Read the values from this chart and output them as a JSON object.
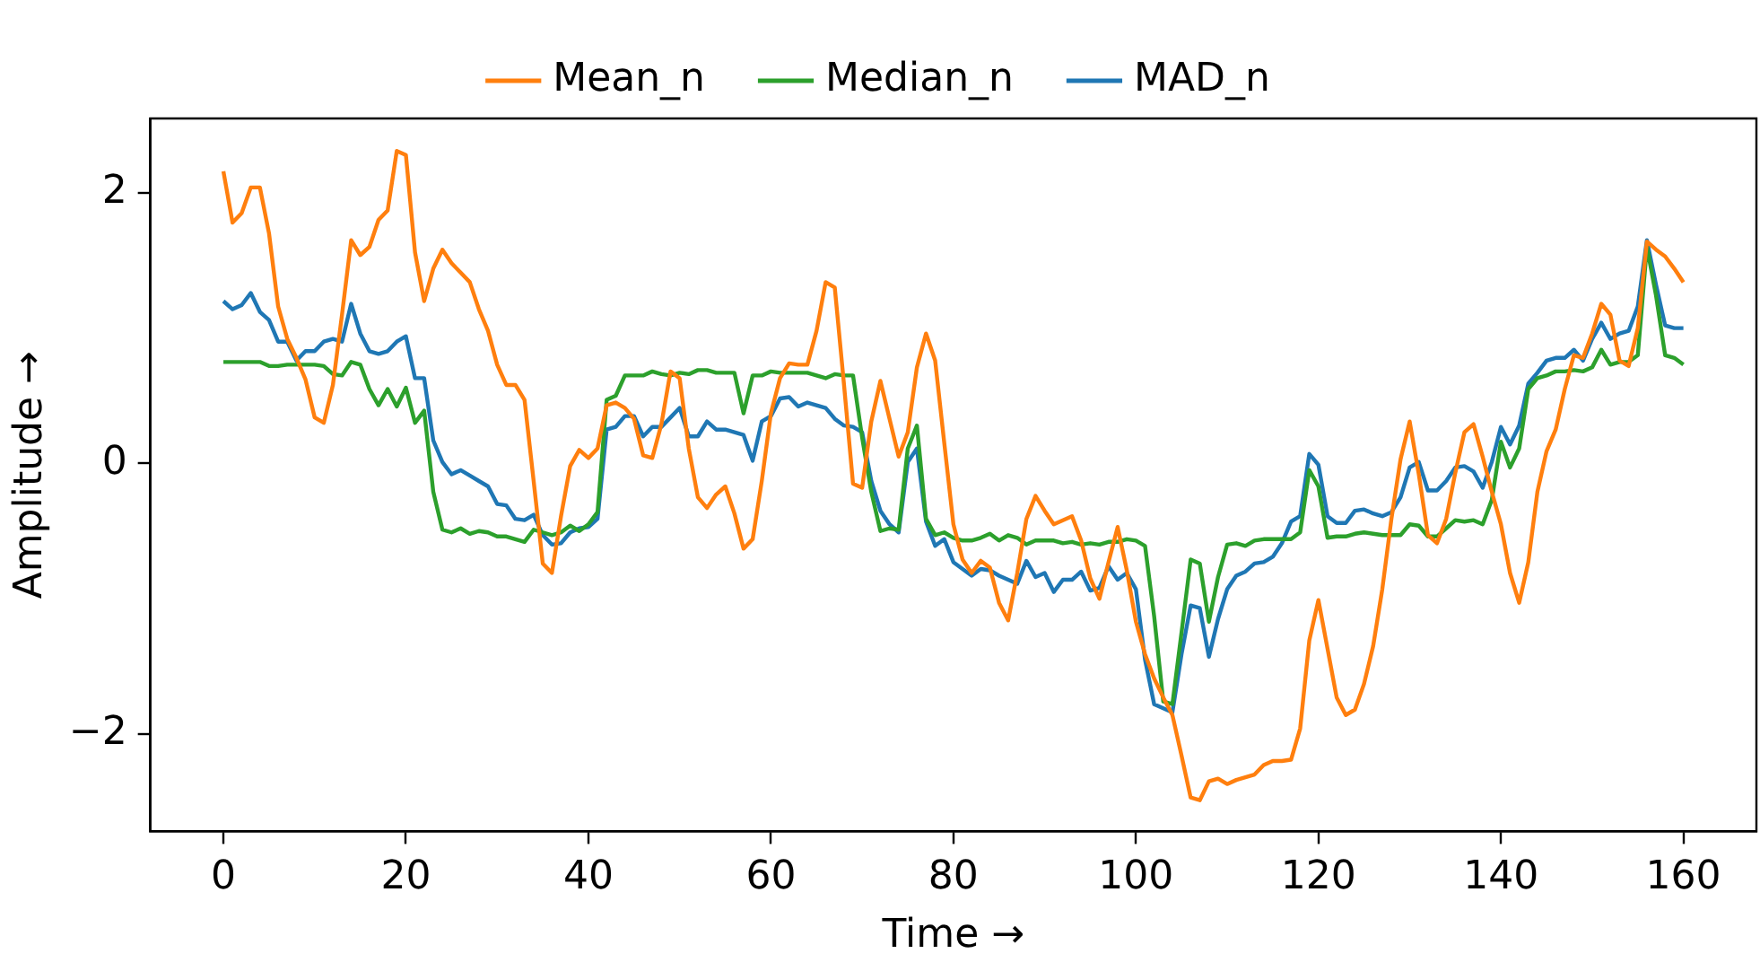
{
  "chart_data": {
    "type": "line",
    "xlabel": "Time →",
    "ylabel": "Amplitude →",
    "legend": "top",
    "grid": false,
    "marker": "none",
    "line_style": "solid",
    "xlim": [
      -8,
      168
    ],
    "xticks": [
      0,
      20,
      40,
      60,
      80,
      100,
      120,
      140,
      160
    ],
    "ylim": [
      -2.72,
      2.55
    ],
    "yticks": [
      {
        "value": -2,
        "label": "−2"
      },
      0,
      2
    ],
    "x": [
      0,
      1,
      2,
      3,
      4,
      5,
      6,
      7,
      8,
      9,
      10,
      11,
      12,
      13,
      14,
      15,
      16,
      17,
      18,
      19,
      20,
      21,
      22,
      23,
      24,
      25,
      26,
      27,
      28,
      29,
      30,
      31,
      32,
      33,
      34,
      35,
      36,
      37,
      38,
      39,
      40,
      41,
      42,
      43,
      44,
      45,
      46,
      47,
      48,
      49,
      50,
      51,
      52,
      53,
      54,
      55,
      56,
      57,
      58,
      59,
      60,
      61,
      62,
      63,
      64,
      65,
      66,
      67,
      68,
      69,
      70,
      71,
      72,
      73,
      74,
      75,
      76,
      77,
      78,
      79,
      80,
      81,
      82,
      83,
      84,
      85,
      86,
      87,
      88,
      89,
      90,
      91,
      92,
      93,
      94,
      95,
      96,
      97,
      98,
      99,
      100,
      101,
      102,
      103,
      104,
      105,
      106,
      107,
      108,
      109,
      110,
      111,
      112,
      113,
      114,
      115,
      116,
      117,
      118,
      119,
      120,
      121,
      122,
      123,
      124,
      125,
      126,
      127,
      128,
      129,
      130,
      131,
      132,
      133,
      134,
      135,
      136,
      137,
      138,
      139,
      140,
      141,
      142,
      143,
      144,
      145,
      146,
      147,
      148,
      149,
      150,
      151,
      152,
      153,
      154,
      155,
      156,
      157,
      158,
      159,
      160
    ],
    "series": [
      {
        "name": "Mean_n",
        "color": "#ff7f0e",
        "values": [
          2.16,
          1.78,
          1.85,
          2.04,
          2.04,
          1.7,
          1.16,
          0.92,
          0.78,
          0.62,
          0.34,
          0.3,
          0.58,
          1.1,
          1.65,
          1.54,
          1.6,
          1.8,
          1.87,
          2.31,
          2.28,
          1.56,
          1.2,
          1.44,
          1.58,
          1.48,
          1.41,
          1.34,
          1.14,
          0.98,
          0.73,
          0.58,
          0.58,
          0.47,
          -0.13,
          -0.74,
          -0.81,
          -0.39,
          -0.02,
          0.1,
          0.04,
          0.11,
          0.43,
          0.45,
          0.41,
          0.33,
          0.06,
          0.04,
          0.29,
          0.68,
          0.63,
          0.11,
          -0.25,
          -0.33,
          -0.23,
          -0.17,
          -0.37,
          -0.63,
          -0.56,
          -0.13,
          0.37,
          0.63,
          0.74,
          0.73,
          0.73,
          0.98,
          1.34,
          1.3,
          0.59,
          -0.15,
          -0.18,
          0.31,
          0.61,
          0.33,
          0.05,
          0.23,
          0.71,
          0.96,
          0.76,
          0.15,
          -0.45,
          -0.71,
          -0.81,
          -0.72,
          -0.77,
          -1.03,
          -1.16,
          -0.81,
          -0.41,
          -0.24,
          -0.35,
          -0.45,
          -0.42,
          -0.39,
          -0.57,
          -0.85,
          -1.0,
          -0.73,
          -0.47,
          -0.79,
          -1.17,
          -1.41,
          -1.59,
          -1.73,
          -1.86,
          -2.16,
          -2.47,
          -2.49,
          -2.35,
          -2.33,
          -2.37,
          -2.34,
          -2.32,
          -2.3,
          -2.23,
          -2.2,
          -2.2,
          -2.19,
          -1.96,
          -1.31,
          -1.01,
          -1.37,
          -1.73,
          -1.86,
          -1.82,
          -1.63,
          -1.35,
          -0.93,
          -0.41,
          0.03,
          0.31,
          -0.08,
          -0.53,
          -0.59,
          -0.41,
          -0.07,
          0.23,
          0.29,
          0.05,
          -0.21,
          -0.45,
          -0.81,
          -1.03,
          -0.73,
          -0.21,
          0.09,
          0.25,
          0.55,
          0.8,
          0.78,
          0.96,
          1.18,
          1.1,
          0.76,
          0.72,
          1.0,
          1.64,
          1.58,
          1.53,
          1.44,
          1.34
        ]
      },
      {
        "name": "Median_n",
        "color": "#2ca02c",
        "values": [
          0.75,
          0.75,
          0.75,
          0.75,
          0.75,
          0.72,
          0.72,
          0.73,
          0.73,
          0.73,
          0.73,
          0.72,
          0.66,
          0.65,
          0.75,
          0.73,
          0.55,
          0.43,
          0.55,
          0.42,
          0.56,
          0.3,
          0.39,
          -0.21,
          -0.49,
          -0.51,
          -0.48,
          -0.52,
          -0.5,
          -0.51,
          -0.54,
          -0.54,
          -0.56,
          -0.58,
          -0.49,
          -0.51,
          -0.53,
          -0.51,
          -0.46,
          -0.5,
          -0.45,
          -0.36,
          0.47,
          0.5,
          0.65,
          0.65,
          0.65,
          0.68,
          0.66,
          0.65,
          0.67,
          0.66,
          0.69,
          0.69,
          0.67,
          0.67,
          0.67,
          0.37,
          0.65,
          0.65,
          0.68,
          0.67,
          0.67,
          0.67,
          0.67,
          0.65,
          0.63,
          0.66,
          0.65,
          0.65,
          0.19,
          -0.21,
          -0.5,
          -0.48,
          -0.49,
          0.11,
          0.28,
          -0.41,
          -0.53,
          -0.51,
          -0.55,
          -0.57,
          -0.57,
          -0.55,
          -0.52,
          -0.57,
          -0.53,
          -0.55,
          -0.6,
          -0.57,
          -0.57,
          -0.57,
          -0.59,
          -0.58,
          -0.6,
          -0.59,
          -0.6,
          -0.58,
          -0.58,
          -0.56,
          -0.57,
          -0.61,
          -1.13,
          -1.76,
          -1.78,
          -1.25,
          -0.71,
          -0.74,
          -1.17,
          -0.84,
          -0.6,
          -0.59,
          -0.61,
          -0.57,
          -0.56,
          -0.56,
          -0.56,
          -0.56,
          -0.51,
          -0.05,
          -0.17,
          -0.55,
          -0.54,
          -0.54,
          -0.52,
          -0.51,
          -0.52,
          -0.53,
          -0.53,
          -0.53,
          -0.45,
          -0.46,
          -0.54,
          -0.54,
          -0.48,
          -0.42,
          -0.43,
          -0.42,
          -0.45,
          -0.27,
          0.16,
          -0.03,
          0.11,
          0.55,
          0.63,
          0.65,
          0.68,
          0.68,
          0.69,
          0.68,
          0.71,
          0.84,
          0.73,
          0.75,
          0.75,
          0.8,
          1.6,
          1.24,
          0.8,
          0.78,
          0.73
        ]
      },
      {
        "name": "MAD_n",
        "color": "#1f77b4",
        "values": [
          1.2,
          1.14,
          1.17,
          1.26,
          1.12,
          1.06,
          0.9,
          0.9,
          0.76,
          0.83,
          0.83,
          0.9,
          0.92,
          0.9,
          1.18,
          0.96,
          0.83,
          0.81,
          0.83,
          0.9,
          0.94,
          0.63,
          0.63,
          0.17,
          0.01,
          -0.08,
          -0.05,
          -0.09,
          -0.13,
          -0.17,
          -0.3,
          -0.31,
          -0.41,
          -0.42,
          -0.38,
          -0.53,
          -0.6,
          -0.59,
          -0.51,
          -0.48,
          -0.47,
          -0.41,
          0.25,
          0.27,
          0.35,
          0.35,
          0.2,
          0.27,
          0.27,
          0.34,
          0.41,
          0.2,
          0.2,
          0.31,
          0.25,
          0.25,
          0.23,
          0.21,
          0.02,
          0.31,
          0.35,
          0.48,
          0.49,
          0.42,
          0.45,
          0.43,
          0.41,
          0.33,
          0.28,
          0.27,
          0.23,
          -0.13,
          -0.35,
          -0.45,
          -0.51,
          0.01,
          0.11,
          -0.43,
          -0.61,
          -0.56,
          -0.73,
          -0.78,
          -0.83,
          -0.78,
          -0.79,
          -0.83,
          -0.86,
          -0.89,
          -0.72,
          -0.84,
          -0.81,
          -0.95,
          -0.86,
          -0.86,
          -0.8,
          -0.94,
          -0.92,
          -0.76,
          -0.86,
          -0.81,
          -0.93,
          -1.45,
          -1.78,
          -1.81,
          -1.84,
          -1.41,
          -1.05,
          -1.07,
          -1.43,
          -1.15,
          -0.93,
          -0.83,
          -0.8,
          -0.74,
          -0.73,
          -0.69,
          -0.59,
          -0.43,
          -0.39,
          0.07,
          -0.01,
          -0.39,
          -0.44,
          -0.44,
          -0.35,
          -0.34,
          -0.37,
          -0.39,
          -0.36,
          -0.25,
          -0.03,
          0.01,
          -0.2,
          -0.2,
          -0.13,
          -0.03,
          -0.02,
          -0.06,
          -0.18,
          0.01,
          0.27,
          0.14,
          0.28,
          0.59,
          0.67,
          0.76,
          0.78,
          0.78,
          0.84,
          0.76,
          0.92,
          1.04,
          0.92,
          0.96,
          0.98,
          1.16,
          1.65,
          1.32,
          1.02,
          1.0,
          1.0
        ]
      }
    ]
  }
}
